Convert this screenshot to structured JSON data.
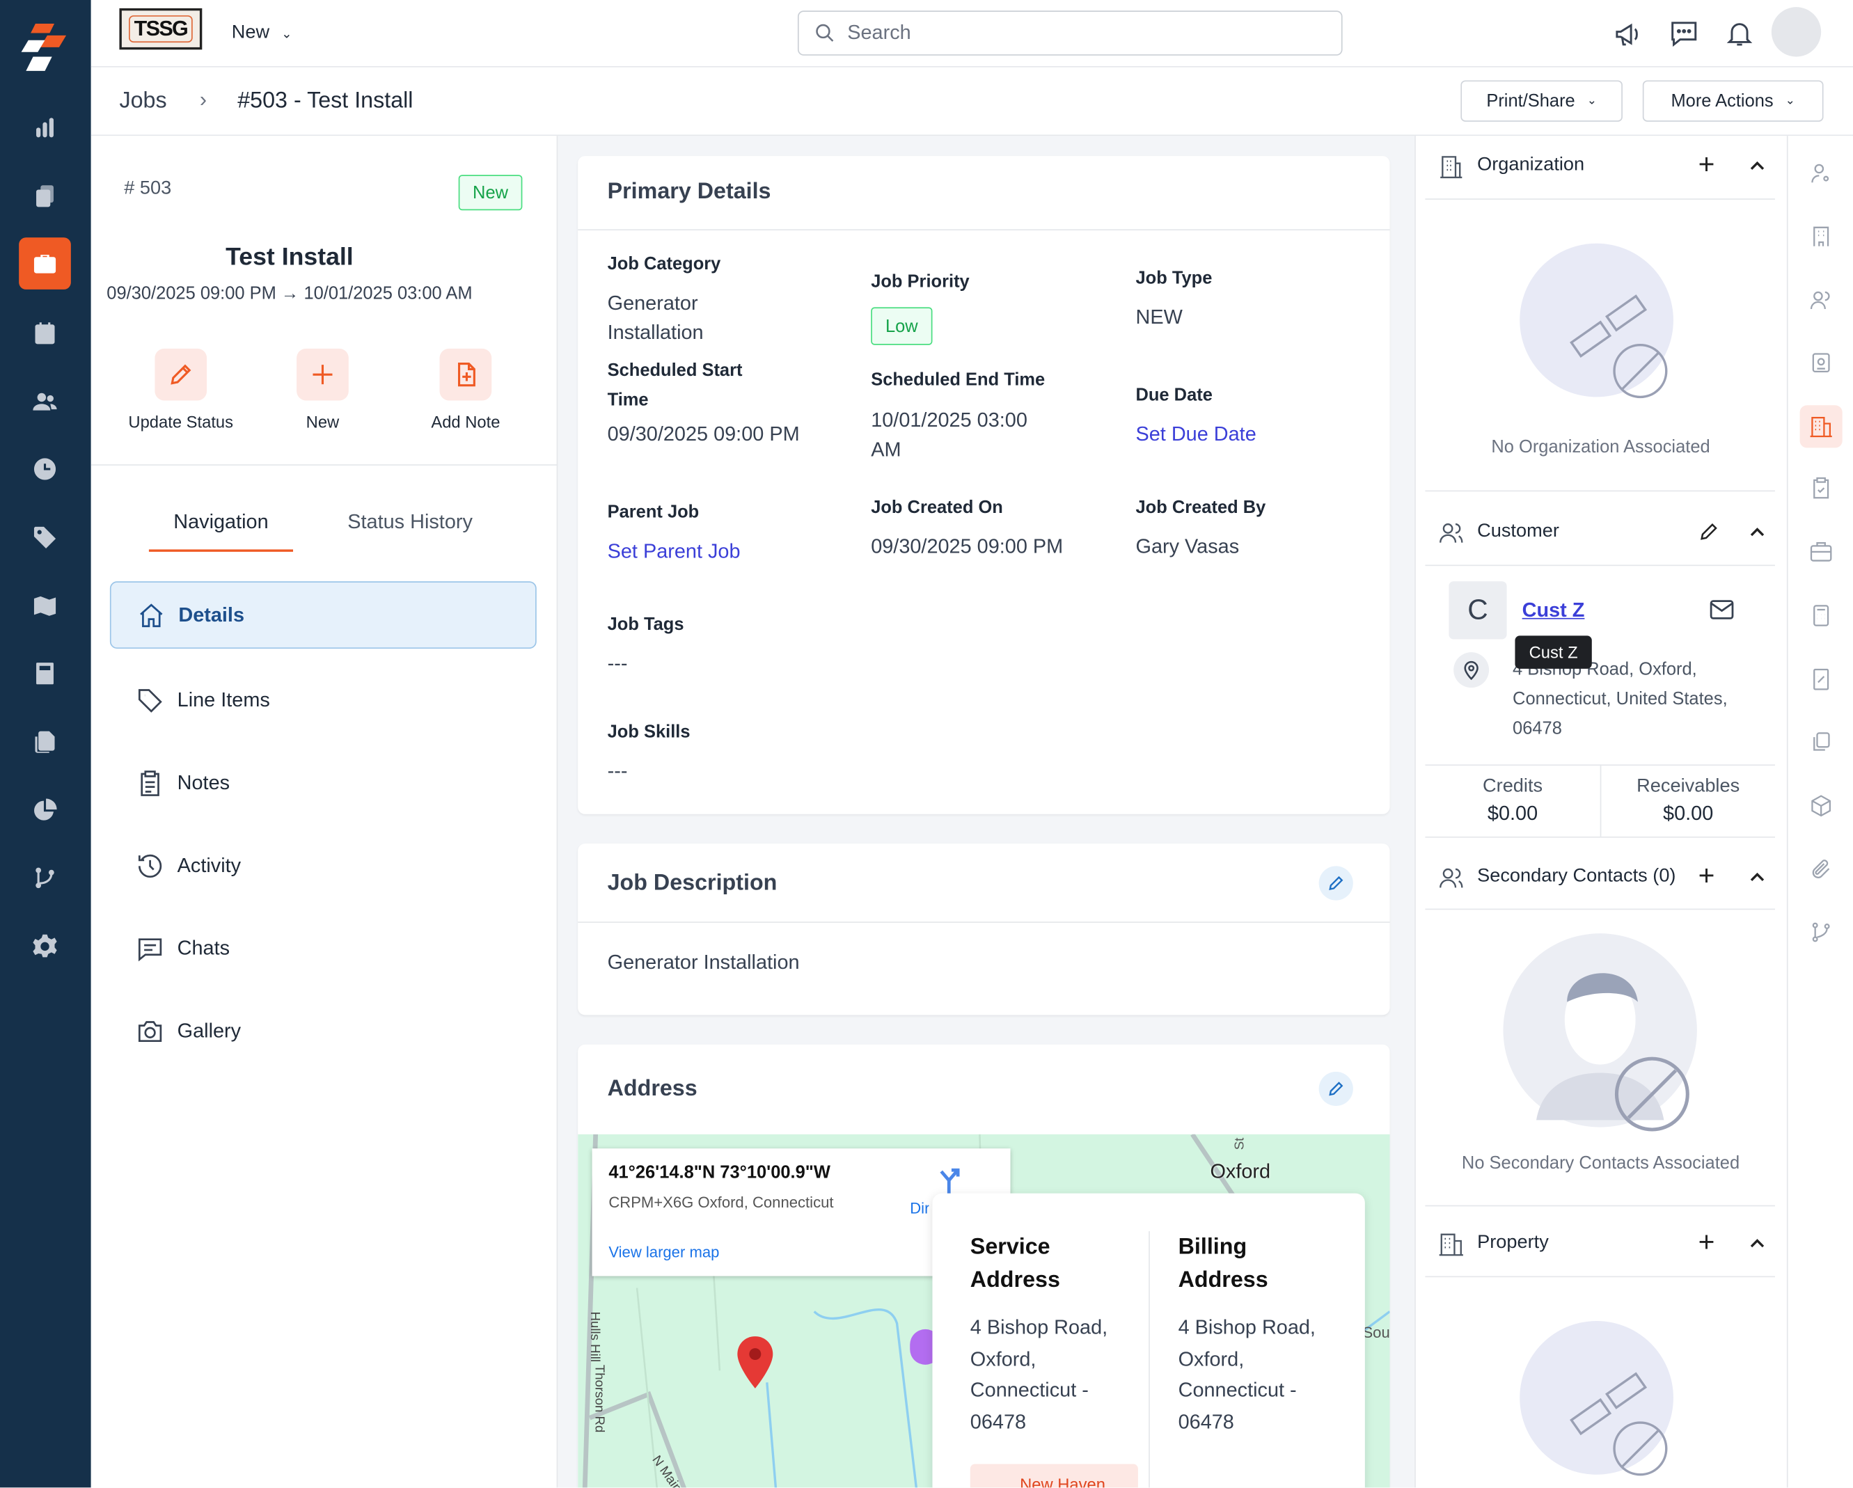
{
  "topbar": {
    "logo_text": "TSSG Digital",
    "new_label": "New",
    "search_placeholder": "Search"
  },
  "breadcrumb": {
    "root": "Jobs",
    "current": "#503 - Test Install"
  },
  "header_actions": {
    "print_share": "Print/Share",
    "more_actions": "More Actions"
  },
  "job": {
    "number": "# 503",
    "status_badge": "New",
    "title": "Test Install",
    "date_range": "09/30/2025 09:00 PM → 10/01/2025 03:00 AM"
  },
  "quick_actions": [
    {
      "label": "Update Status",
      "icon": "pencil-icon"
    },
    {
      "label": "New",
      "icon": "plus-icon"
    },
    {
      "label": "Add Note",
      "icon": "file-plus-icon"
    }
  ],
  "tabs": [
    {
      "label": "Navigation",
      "active": true
    },
    {
      "label": "Status History",
      "active": false
    }
  ],
  "nav_items": [
    {
      "label": "Details",
      "icon": "home-icon",
      "active": true
    },
    {
      "label": "Line Items",
      "icon": "tag-icon"
    },
    {
      "label": "Notes",
      "icon": "clipboard-icon"
    },
    {
      "label": "Activity",
      "icon": "history-icon"
    },
    {
      "label": "Chats",
      "icon": "chat-icon"
    },
    {
      "label": "Gallery",
      "icon": "camera-icon"
    }
  ],
  "primary": {
    "title": "Primary Details",
    "job_category_label": "Job Category",
    "job_category": "Generator Installation",
    "job_priority_label": "Job Priority",
    "job_priority": "Low",
    "job_type_label": "Job Type",
    "job_type": "NEW",
    "sched_start_label": "Scheduled Start Time",
    "sched_start": "09/30/2025 09:00 PM",
    "sched_end_label": "Scheduled End Time",
    "sched_end": "10/01/2025 03:00 AM",
    "due_date_label": "Due Date",
    "due_date": "Set Due Date",
    "parent_job_label": "Parent Job",
    "parent_job": "Set Parent Job",
    "created_on_label": "Job Created On",
    "created_on": "09/30/2025 09:00 PM",
    "created_by_label": "Job Created By",
    "created_by": "Gary Vasas",
    "tags_label": "Job Tags",
    "tags": "---",
    "skills_label": "Job Skills",
    "skills": "---"
  },
  "description": {
    "title": "Job Description",
    "text": "Generator Installation"
  },
  "address": {
    "title": "Address",
    "map": {
      "coords": "41°26'14.8\"N 73°10'00.9\"W",
      "plus_code": "CRPM+X6G Oxford, Connecticut",
      "directions": "Directions",
      "larger_map": "View larger map",
      "town": "Oxford",
      "road1": "Hulls Hill",
      "road2": "Thorson Rd",
      "road3": "N Main",
      "road4": "St",
      "road5": "Sou"
    },
    "service_title": "Service Address",
    "service": "4 Bishop Road, Oxford, Connecticut - 06478",
    "billing_title": "Billing Address",
    "billing": "4 Bishop Road, Oxford, Connecticut - 06478",
    "region_tag": "New Haven"
  },
  "right": {
    "organization": {
      "title": "Organization",
      "empty": "No Organization Associated"
    },
    "customer": {
      "title": "Customer",
      "avatar_letter": "C",
      "name": "Cust Z",
      "tooltip": "Cust Z",
      "address": "4 Bishop Road, Oxford, Connecticut, United States, 06478",
      "credits_label": "Credits",
      "credits": "$0.00",
      "receivables_label": "Receivables",
      "receivables": "$0.00"
    },
    "secondary": {
      "title": "Secondary Contacts (0)",
      "empty": "No Secondary Contacts Associated"
    },
    "property": {
      "title": "Property"
    }
  },
  "colors": {
    "brand": "#ef5a24",
    "sidebar": "#15304a",
    "link": "#3b3fd8",
    "active_nav": "#1d4f8c",
    "badge_green": "#16a34a"
  }
}
